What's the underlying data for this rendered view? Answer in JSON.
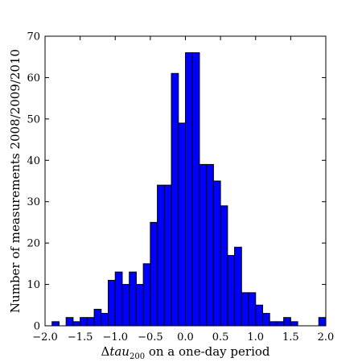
{
  "chart_data": {
    "type": "bar",
    "bin_edges_start": -2.0,
    "bin_width": 0.1,
    "values": [
      0,
      1,
      0,
      2,
      1,
      2,
      2,
      4,
      3,
      11,
      13,
      10,
      13,
      10,
      15,
      25,
      34,
      34,
      61,
      49,
      66,
      66,
      39,
      39,
      35,
      29,
      17,
      19,
      8,
      8,
      5,
      3,
      1,
      1,
      2,
      1,
      0,
      0,
      0,
      2
    ],
    "xlim": [
      -2.0,
      2.0
    ],
    "ylim": [
      0,
      70
    ],
    "x_ticks": [
      {
        "value": -2.0,
        "label": "−2.0"
      },
      {
        "value": -1.5,
        "label": "−1.5"
      },
      {
        "value": -1.0,
        "label": "−1.0"
      },
      {
        "value": -0.5,
        "label": "−0.5"
      },
      {
        "value": 0.0,
        "label": "0.0"
      },
      {
        "value": 0.5,
        "label": "0.5"
      },
      {
        "value": 1.0,
        "label": "1.0"
      },
      {
        "value": 1.5,
        "label": "1.5"
      },
      {
        "value": 2.0,
        "label": "2.0"
      }
    ],
    "y_ticks": [
      {
        "value": 0,
        "label": "0"
      },
      {
        "value": 10,
        "label": "10"
      },
      {
        "value": 20,
        "label": "20"
      },
      {
        "value": 30,
        "label": "30"
      },
      {
        "value": 40,
        "label": "40"
      },
      {
        "value": 50,
        "label": "50"
      },
      {
        "value": 60,
        "label": "60"
      },
      {
        "value": 70,
        "label": "70"
      }
    ],
    "xlabel": {
      "delta": "Δ",
      "var": "tau",
      "sub": "200",
      "rest": " on a one-day period"
    },
    "ylabel": "Number of measurements 2008/2009/2010",
    "bar_color": "#0000ff",
    "edge_color": "#000000",
    "grid": false
  }
}
